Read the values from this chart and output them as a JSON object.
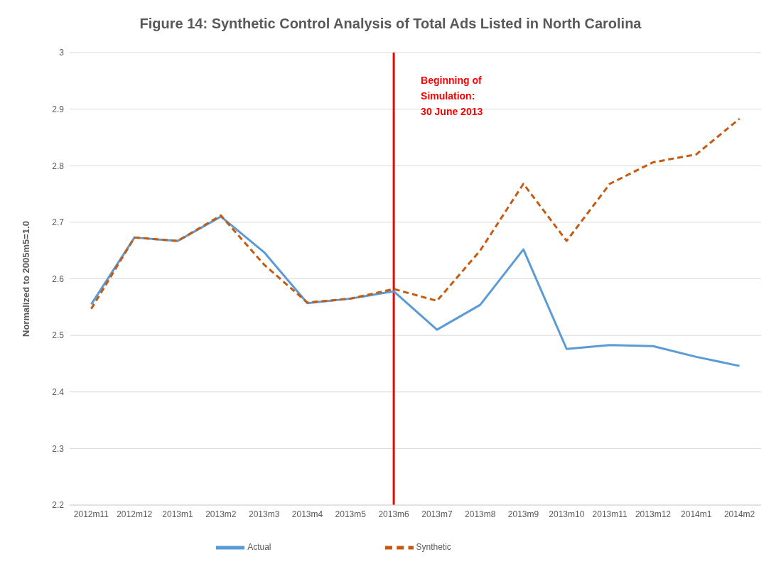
{
  "chart_data": {
    "type": "line",
    "title": "Figure 14:  Synthetic Control Analysis of Total Ads Listed in North Carolina",
    "ylabel": "Normalized to 2005m5=1.0",
    "categories": [
      "2012m11",
      "2012m12",
      "2013m1",
      "2013m2",
      "2013m3",
      "2013m4",
      "2013m5",
      "2013m6",
      "2013m7",
      "2013m8",
      "2013m9",
      "2013m10",
      "2013m11",
      "2013m12",
      "2014m1",
      "2014m2"
    ],
    "series": [
      {
        "name": "Actual",
        "color": "#5b9bd5",
        "line_style": "solid",
        "values": [
          2.555,
          2.673,
          2.667,
          2.71,
          2.647,
          2.557,
          2.565,
          2.578,
          2.51,
          2.554,
          2.652,
          2.476,
          2.483,
          2.481,
          2.462,
          2.446
        ]
      },
      {
        "name": "Synthetic",
        "color": "#c55a11",
        "line_style": "dashed",
        "values": [
          2.547,
          2.673,
          2.667,
          2.712,
          2.625,
          2.558,
          2.565,
          2.582,
          2.561,
          2.65,
          2.768,
          2.667,
          2.768,
          2.806,
          2.82,
          2.883
        ]
      }
    ],
    "ylim": [
      2.2,
      3
    ],
    "yticks": [
      2.2,
      2.3,
      2.4,
      2.5,
      2.6,
      2.7,
      2.8,
      2.9,
      3
    ],
    "ref_lines": [
      {
        "axis": "x",
        "value": "2013m6",
        "label": "Beginning of\nSimulation:\n30 June 2013",
        "color": "#ff0000"
      }
    ],
    "grid": "y",
    "legend": "bottom",
    "marker": "none"
  }
}
